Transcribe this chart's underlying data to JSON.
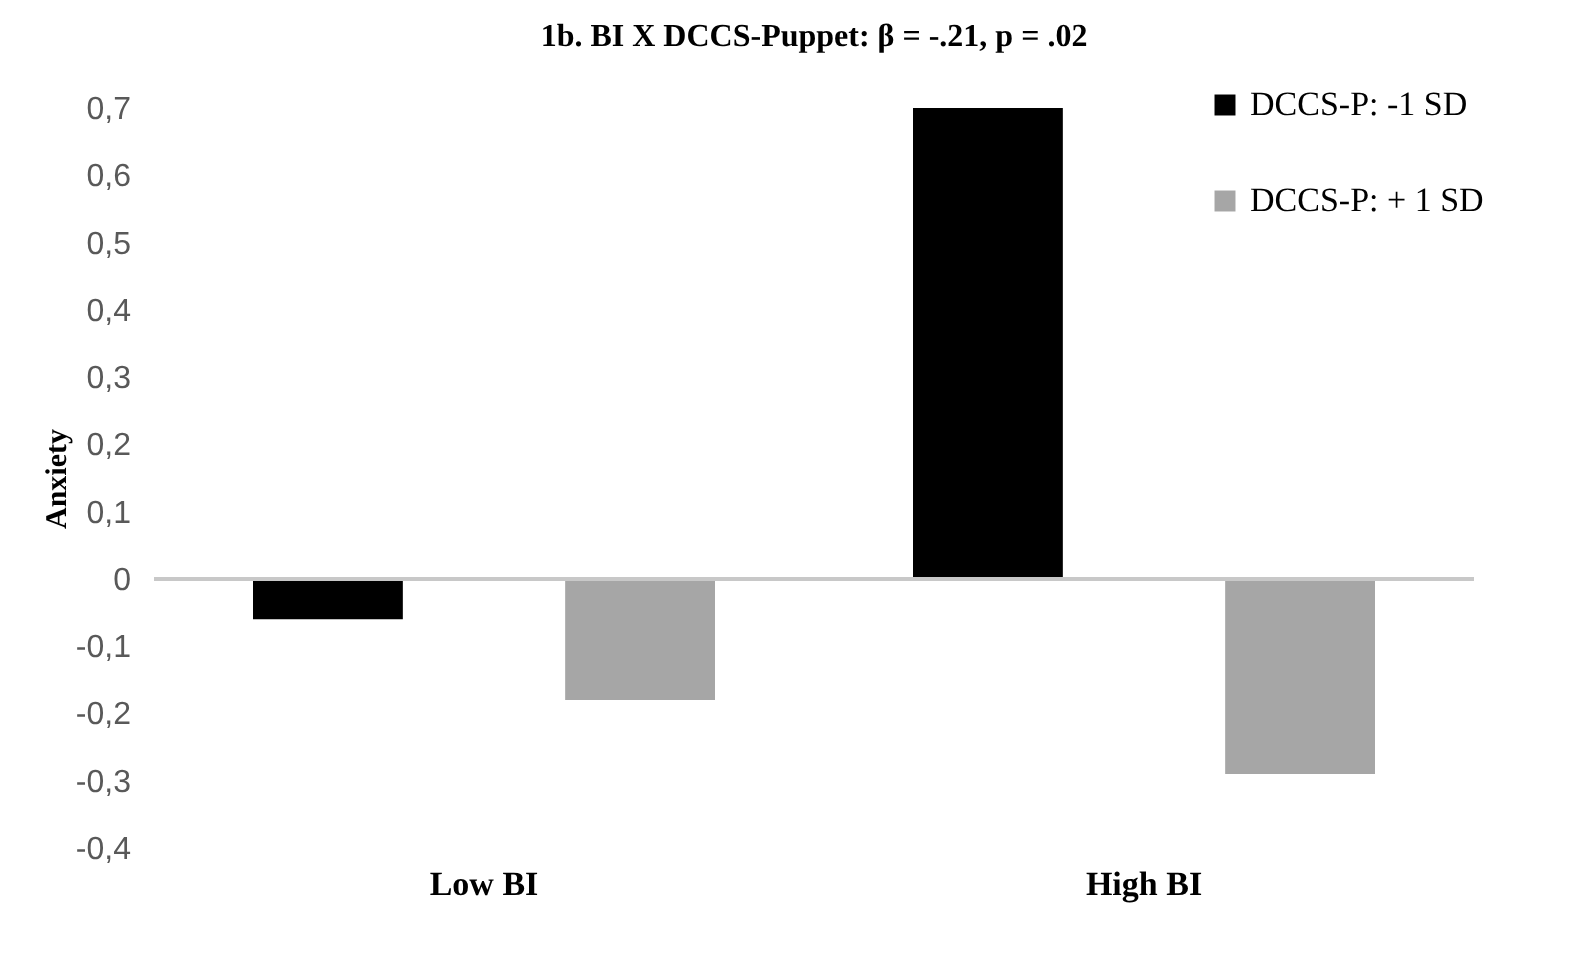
{
  "chart_data": {
    "type": "bar",
    "title": "1b. BI X DCCS-Puppet: β = -.21, p = .02",
    "ylabel": "Anxiety",
    "categories": [
      "Low BI",
      "High BI"
    ],
    "series": [
      {
        "name": "DCCS-P: -1 SD",
        "color": "#000000",
        "values": [
          -0.06,
          0.7
        ]
      },
      {
        "name": "DCCS-P: + 1  SD",
        "color": "#a6a6a6",
        "values": [
          -0.18,
          -0.29
        ]
      }
    ],
    "ylim": [
      -0.4,
      0.7
    ],
    "yticks": [
      {
        "value": -0.4,
        "label": "-0,4"
      },
      {
        "value": -0.3,
        "label": "-0,3"
      },
      {
        "value": -0.2,
        "label": "-0,2"
      },
      {
        "value": -0.1,
        "label": "-0,1"
      },
      0,
      {
        "value": 0.1,
        "label": "0,1"
      },
      {
        "value": 0.2,
        "label": "0,2"
      },
      {
        "value": 0.3,
        "label": "0,3"
      },
      {
        "value": 0.4,
        "label": "0,4"
      },
      {
        "value": 0.5,
        "label": "0,5"
      },
      {
        "value": 0.6,
        "label": "0,6"
      },
      {
        "value": 0.7,
        "label": "0,7"
      }
    ],
    "ref_lines": [
      {
        "axis": "y",
        "value": 0,
        "color": "#c8c8c8"
      }
    ],
    "grid": false,
    "legend": "top right"
  }
}
